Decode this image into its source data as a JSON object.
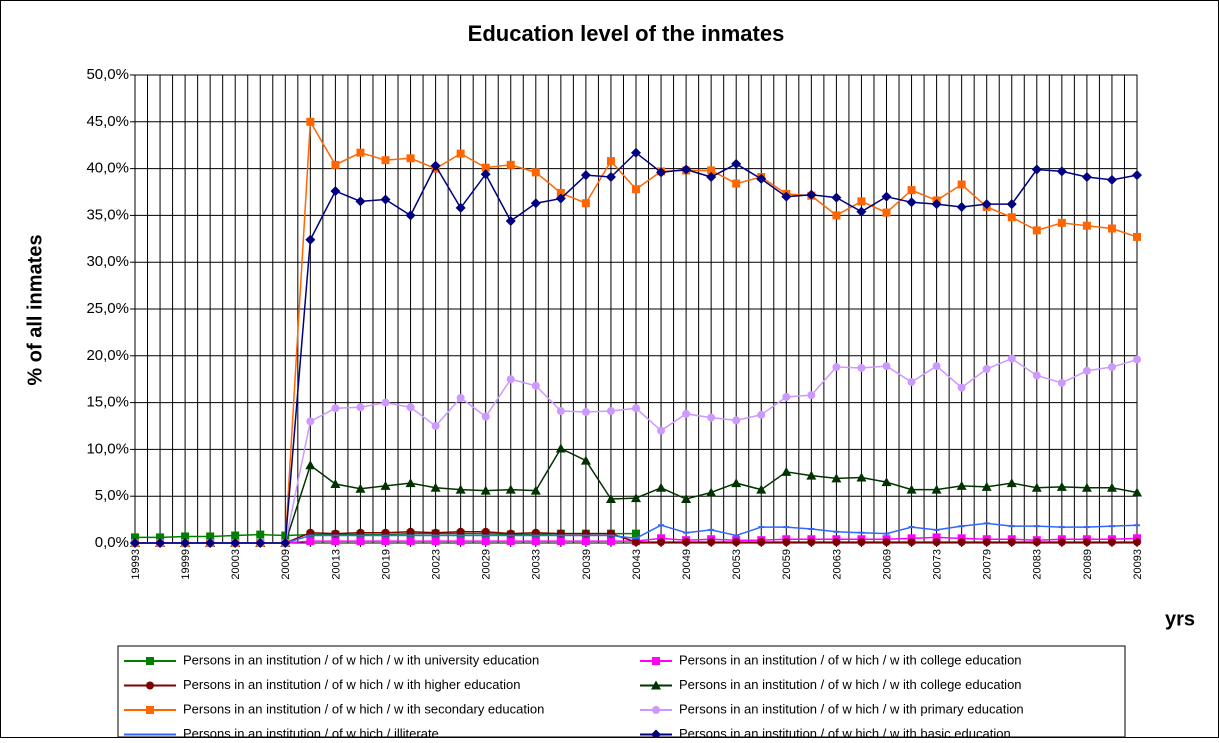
{
  "chart_data": {
    "type": "line",
    "title": "Education level of the inmates",
    "y_label": "% of all inmates",
    "x_label": "yrs",
    "categories": [
      "19993",
      null,
      "19999",
      null,
      "20003",
      null,
      "20009",
      null,
      "20013",
      null,
      "20019",
      null,
      "20023",
      null,
      "20029",
      null,
      "20033",
      null,
      "20039",
      null,
      "20043",
      null,
      "20049",
      null,
      "20053",
      null,
      "20059",
      null,
      "20063",
      null,
      "20069",
      null,
      "20073",
      null,
      "20079",
      null,
      "20083",
      null,
      "20089",
      null,
      "20093"
    ],
    "ylim": [
      0,
      50
    ],
    "yticks": [
      {
        "value": 0,
        "label": "0,0%"
      },
      {
        "value": 5,
        "label": "5,0%"
      },
      {
        "value": 10,
        "label": "10,0%"
      },
      {
        "value": 15,
        "label": "15,0%"
      },
      {
        "value": 20,
        "label": "20,0%"
      },
      {
        "value": 25,
        "label": "25,0%"
      },
      {
        "value": 30,
        "label": "30,0%"
      },
      {
        "value": 35,
        "label": "35,0%"
      },
      {
        "value": 40,
        "label": "40,0%"
      },
      {
        "value": 45,
        "label": "45,0%"
      },
      {
        "value": 50,
        "label": "50,0%"
      }
    ],
    "grid": true,
    "series": [
      {
        "name": "Persons in an institution / of w hich / w ith university education",
        "color": "#008000",
        "marker": "square",
        "values": [
          0.6,
          0.6,
          0.7,
          0.7,
          0.8,
          0.9,
          0.8,
          0.9,
          0.9,
          0.9,
          0.9,
          1.0,
          1.0,
          1.0,
          1.0,
          0.9,
          0.9,
          1.0,
          1.0,
          1.0,
          1.0,
          null,
          null,
          null,
          null,
          null,
          null,
          null,
          null,
          null,
          null,
          null,
          null,
          null,
          null,
          null,
          null,
          null,
          null,
          null,
          null
        ]
      },
      {
        "name": "Persons in an institution / of w hich / w ith college education",
        "color": "#ff00ff",
        "marker": "square",
        "values": [
          0,
          0,
          0,
          0,
          0,
          0,
          0,
          0.2,
          0.2,
          0.2,
          0.2,
          0.2,
          0.2,
          0.2,
          0.2,
          0.2,
          0.2,
          0.2,
          0.2,
          0.2,
          0.2,
          0.5,
          0.3,
          0.4,
          0.3,
          0.3,
          0.4,
          0.4,
          0.4,
          0.4,
          0.4,
          0.5,
          0.6,
          0.5,
          0.4,
          0.4,
          0.3,
          0.4,
          0.4,
          0.4,
          0.5
        ]
      },
      {
        "name": "Persons in an institution / of w hich / w ith higher education",
        "color": "#800000",
        "marker": "circle",
        "values": [
          0,
          0,
          0,
          0,
          0,
          0,
          0,
          1.1,
          1.0,
          1.1,
          1.1,
          1.2,
          1.1,
          1.2,
          1.2,
          1.0,
          1.1,
          1.0,
          1.0,
          1.0,
          0.1,
          0.1,
          0.1,
          0.1,
          0.1,
          0.1,
          0.1,
          0.1,
          0.1,
          0.1,
          0.1,
          0.1,
          0.1,
          0.1,
          0.1,
          0.1,
          0.1,
          0.1,
          0.1,
          0.1,
          0.1
        ]
      },
      {
        "name": "Persons in an institution / of w hich / w ith college education",
        "color": "#003300",
        "marker": "triangle",
        "values": [
          0,
          0,
          0,
          0,
          0,
          0,
          0,
          8.3,
          6.3,
          5.8,
          6.1,
          6.4,
          5.9,
          5.7,
          5.6,
          5.7,
          5.6,
          10.1,
          8.8,
          4.7,
          4.8,
          5.9,
          4.7,
          5.4,
          6.4,
          5.7,
          7.6,
          7.2,
          6.9,
          7.0,
          6.5,
          5.7,
          5.7,
          6.1,
          6.0,
          6.4,
          5.9,
          6.0,
          5.9,
          5.9,
          5.4
        ]
      },
      {
        "name": "Persons in an institution / of w hich / w ith secondary education",
        "color": "#ff6600",
        "marker": "square",
        "values": [
          0,
          0,
          0,
          0,
          0,
          0,
          0,
          45.0,
          40.4,
          41.7,
          40.9,
          41.1,
          40.0,
          41.6,
          40.1,
          40.4,
          39.6,
          37.4,
          36.3,
          40.8,
          37.8,
          39.7,
          39.8,
          39.8,
          38.4,
          39.1,
          37.3,
          37.1,
          35.0,
          36.5,
          35.3,
          37.7,
          36.6,
          38.3,
          35.9,
          34.8,
          33.4,
          34.2,
          33.9,
          33.6,
          32.7
        ]
      },
      {
        "name": "Persons in an institution / of w hich / w ith primary education",
        "color": "#cc99ff",
        "marker": "circle",
        "values": [
          0,
          0,
          0,
          0,
          0,
          0,
          0,
          13.0,
          14.4,
          14.5,
          15.0,
          14.5,
          12.5,
          15.5,
          13.5,
          17.5,
          16.8,
          14.1,
          14.0,
          14.1,
          14.4,
          12.0,
          13.8,
          13.4,
          13.1,
          13.7,
          15.6,
          15.8,
          18.8,
          18.7,
          18.9,
          17.2,
          18.9,
          16.6,
          18.6,
          19.7,
          17.9,
          17.1,
          18.4,
          18.8,
          19.6
        ]
      },
      {
        "name": "Persons in an institution / of w hich / illiterate",
        "color": "#3366ff",
        "marker": "dash",
        "values": [
          0,
          0,
          0,
          0,
          0,
          0,
          0,
          0.8,
          0.8,
          0.8,
          0.8,
          0.8,
          0.8,
          0.8,
          0.8,
          0.8,
          0.8,
          0.8,
          0.8,
          0.8,
          0.5,
          1.9,
          1.1,
          1.4,
          0.8,
          1.7,
          1.7,
          1.5,
          1.2,
          1.1,
          1.0,
          1.7,
          1.4,
          1.8,
          2.1,
          1.8,
          1.8,
          1.7,
          1.7,
          1.8,
          1.9
        ]
      },
      {
        "name": "Persons in an institution / of w hich / w ith basic education",
        "color": "#000080",
        "marker": "diamond",
        "values": [
          0,
          0,
          0,
          0,
          0,
          0,
          0,
          32.4,
          37.6,
          36.5,
          36.7,
          35.0,
          40.3,
          35.8,
          39.4,
          34.4,
          36.3,
          36.8,
          39.3,
          39.1,
          41.7,
          39.6,
          39.9,
          39.1,
          40.5,
          38.9,
          37.0,
          37.2,
          36.9,
          35.4,
          37.0,
          36.4,
          36.2,
          35.9,
          36.2,
          36.2,
          39.9,
          39.7,
          39.1,
          38.8,
          39.3
        ]
      }
    ]
  }
}
